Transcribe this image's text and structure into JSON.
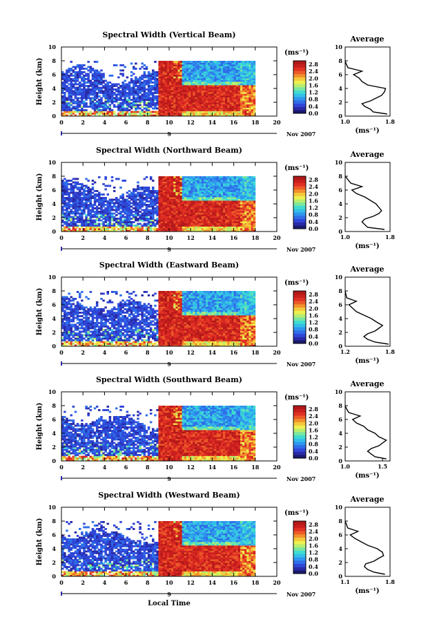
{
  "figure": {
    "xlabel": "Local Time",
    "x_ticks": [
      "0",
      "2",
      "4",
      "6",
      "8",
      "10",
      "12",
      "14",
      "16",
      "18",
      "20"
    ],
    "day_label": "9",
    "date_label": "Nov 2007",
    "average_title": "Average",
    "colorbar_units": "(ms⁻¹)",
    "average_xlabel": "(ms⁻¹)"
  },
  "chart_data": [
    {
      "type": "heatmap",
      "title": "Spectral Width (Vertical Beam)",
      "xlabel": "",
      "ylabel": "Height (km)",
      "xlim": [
        0,
        20
      ],
      "ylim": [
        0,
        10
      ],
      "y_ticks": [
        "0",
        "2",
        "4",
        "6",
        "8",
        "10"
      ],
      "colorbar": {
        "label": "(ms⁻¹)",
        "ticks": [
          "0.0",
          "0.4",
          "0.8",
          "1.2",
          "1.6",
          "2.0",
          "2.4",
          "2.8"
        ]
      },
      "average": {
        "title": "Average",
        "xlim": [
          1.0,
          1.8
        ],
        "x_ticks": [
          "1.0",
          "1.8"
        ],
        "ylim": [
          0,
          10
        ],
        "profile_y": [
          0.3,
          0.6,
          1.0,
          1.4,
          1.8,
          2.2,
          2.6,
          3.0,
          3.5,
          4.0,
          4.5,
          5.0,
          5.5,
          6.0,
          6.5,
          7.0,
          7.5,
          8.0
        ],
        "profile_x": [
          1.75,
          1.5,
          1.45,
          1.35,
          1.3,
          1.45,
          1.55,
          1.65,
          1.7,
          1.72,
          1.4,
          1.3,
          1.25,
          1.15,
          1.3,
          1.05,
          1.02,
          1.0
        ]
      }
    },
    {
      "type": "heatmap",
      "title": "Spectral Width (Northward Beam)",
      "xlabel": "",
      "ylabel": "Height (km)",
      "xlim": [
        0,
        20
      ],
      "ylim": [
        0,
        10
      ],
      "y_ticks": [
        "0",
        "2",
        "4",
        "6",
        "8",
        "10"
      ],
      "colorbar": {
        "label": "(ms⁻¹)",
        "ticks": [
          "0.0",
          "0.4",
          "0.8",
          "1.2",
          "1.6",
          "2.0",
          "2.4",
          "2.8"
        ]
      },
      "average": {
        "title": "Average",
        "xlim": [
          1.0,
          1.8
        ],
        "x_ticks": [
          "1.0",
          "1.8"
        ],
        "ylim": [
          0,
          10
        ],
        "profile_y": [
          0.3,
          0.6,
          1.0,
          1.4,
          1.8,
          2.2,
          2.6,
          3.0,
          3.5,
          4.0,
          4.5,
          5.0,
          5.5,
          6.0,
          6.5,
          7.0,
          7.5,
          8.0
        ],
        "profile_x": [
          1.7,
          1.4,
          1.35,
          1.3,
          1.35,
          1.5,
          1.6,
          1.65,
          1.6,
          1.55,
          1.45,
          1.35,
          1.2,
          1.12,
          1.3,
          1.1,
          1.05,
          1.0
        ]
      }
    },
    {
      "type": "heatmap",
      "title": "Spectral Width (Eastward Beam)",
      "xlabel": "",
      "ylabel": "Height (km)",
      "xlim": [
        0,
        20
      ],
      "ylim": [
        0,
        10
      ],
      "y_ticks": [
        "0",
        "2",
        "4",
        "6",
        "8",
        "10"
      ],
      "colorbar": {
        "label": "(ms⁻¹)",
        "ticks": [
          "0.0",
          "0.4",
          "0.8",
          "1.2",
          "1.6",
          "2.0",
          "2.4",
          "2.8"
        ]
      },
      "average": {
        "title": "Average",
        "xlim": [
          1.2,
          1.8
        ],
        "x_ticks": [
          "1.2",
          "1.8"
        ],
        "ylim": [
          0,
          10
        ],
        "profile_y": [
          0.3,
          0.6,
          1.0,
          1.4,
          1.8,
          2.2,
          2.6,
          3.0,
          3.5,
          4.0,
          4.5,
          5.0,
          5.5,
          6.0,
          6.5,
          7.0,
          7.5,
          8.0
        ],
        "profile_x": [
          1.78,
          1.6,
          1.5,
          1.45,
          1.5,
          1.6,
          1.65,
          1.7,
          1.62,
          1.55,
          1.45,
          1.35,
          1.3,
          1.25,
          1.35,
          1.22,
          1.21,
          1.2
        ]
      }
    },
    {
      "type": "heatmap",
      "title": "Spectral Width (Southward Beam)",
      "xlabel": "",
      "ylabel": "Height (km)",
      "xlim": [
        0,
        20
      ],
      "ylim": [
        0,
        10
      ],
      "y_ticks": [
        "0",
        "2",
        "4",
        "6",
        "8",
        "10"
      ],
      "colorbar": {
        "label": "(ms⁻¹)",
        "ticks": [
          "0.0",
          "0.4",
          "0.8",
          "1.2",
          "1.6",
          "2.0",
          "2.4",
          "2.8"
        ]
      },
      "average": {
        "title": "Average",
        "xlim": [
          1.0,
          1.6
        ],
        "x_ticks": [
          "1.0",
          "1.5"
        ],
        "ylim": [
          0,
          10
        ],
        "profile_y": [
          0.3,
          0.6,
          1.0,
          1.4,
          1.8,
          2.2,
          2.6,
          3.0,
          3.5,
          4.0,
          4.5,
          5.0,
          5.5,
          6.0,
          6.5,
          7.0,
          7.5,
          8.0
        ],
        "profile_x": [
          1.55,
          1.4,
          1.35,
          1.3,
          1.35,
          1.45,
          1.5,
          1.55,
          1.45,
          1.4,
          1.3,
          1.25,
          1.15,
          1.1,
          1.2,
          1.05,
          1.02,
          1.0
        ]
      }
    },
    {
      "type": "heatmap",
      "title": "Spectral Width (Westward Beam)",
      "xlabel": "Local Time",
      "ylabel": "Height (km)",
      "xlim": [
        0,
        20
      ],
      "ylim": [
        0,
        10
      ],
      "y_ticks": [
        "0",
        "2",
        "4",
        "6",
        "8",
        "10"
      ],
      "colorbar": {
        "label": "(ms⁻¹)",
        "ticks": [
          "0.0",
          "0.4",
          "0.8",
          "1.2",
          "1.6",
          "2.0",
          "2.4",
          "2.8"
        ]
      },
      "average": {
        "title": "Average",
        "xlim": [
          1.1,
          1.8
        ],
        "x_ticks": [
          "1.1",
          "1.8"
        ],
        "ylim": [
          0,
          10
        ],
        "profile_y": [
          0.3,
          0.6,
          1.0,
          1.4,
          1.8,
          2.2,
          2.6,
          3.0,
          3.5,
          4.0,
          4.5,
          5.0,
          5.5,
          6.0,
          6.5,
          7.0,
          7.5,
          8.0
        ],
        "profile_x": [
          1.72,
          1.55,
          1.45,
          1.4,
          1.42,
          1.55,
          1.62,
          1.7,
          1.68,
          1.6,
          1.45,
          1.35,
          1.25,
          1.18,
          1.3,
          1.14,
          1.12,
          1.1
        ]
      }
    }
  ]
}
